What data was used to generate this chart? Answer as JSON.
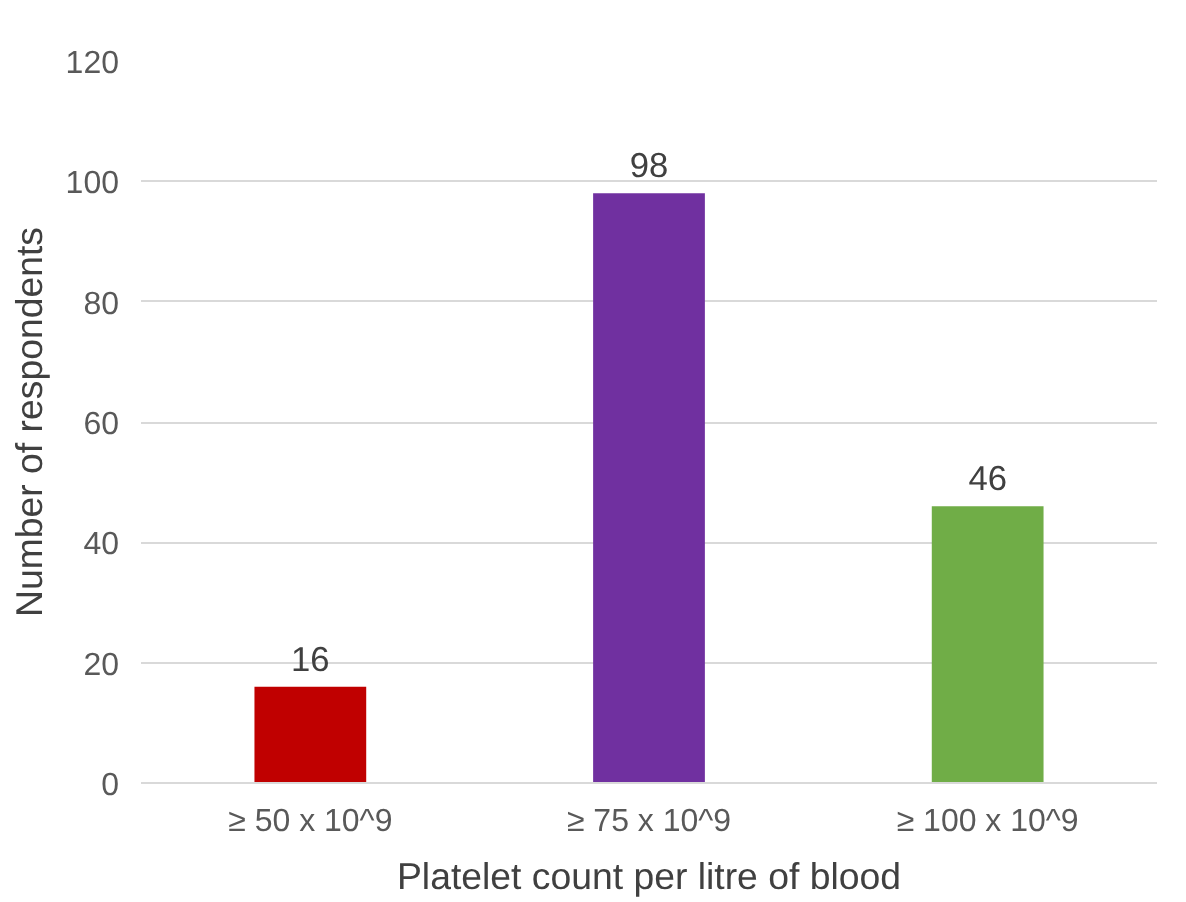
{
  "chart_data": {
    "type": "bar",
    "xlabel": "Platelet count per litre of blood",
    "ylabel": "Number of respondents",
    "categories": [
      "≥ 50 x 10^9",
      "≥ 75 x 10^9",
      "≥ 100 x 10^9"
    ],
    "values": [
      16,
      98,
      46
    ],
    "colors": [
      "#c00000",
      "#7030a0",
      "#70ad47"
    ],
    "ylim": [
      0,
      120
    ],
    "yticks": [
      0,
      20,
      40,
      60,
      80,
      100,
      120
    ],
    "grid": "y",
    "data_labels": true
  }
}
